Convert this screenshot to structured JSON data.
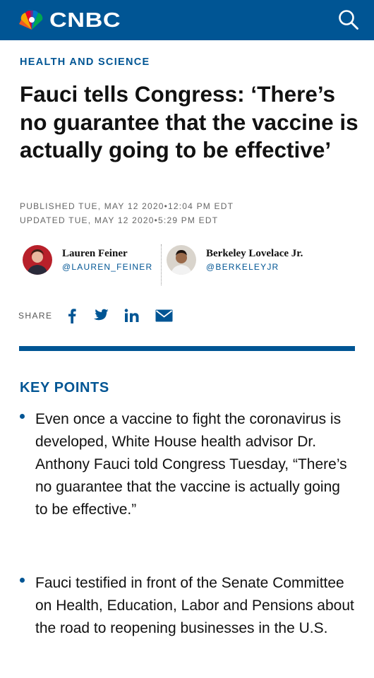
{
  "header": {
    "logo_text": "CNBC",
    "logo_icon": "peacock-icon",
    "search_icon": "search-icon"
  },
  "article": {
    "section": "HEALTH AND SCIENCE",
    "headline": "Fauci tells Congress: ‘There’s no guarantee that the vaccine is actually going to be effective’",
    "published": "PUBLISHED TUE, MAY 12 2020•12:04 PM EDT",
    "updated": "UPDATED TUE, MAY 12 2020•5:29 PM EDT",
    "authors": [
      {
        "name": "Lauren Feiner",
        "handle": "@LAUREN_FEINER"
      },
      {
        "name": "Berkeley Lovelace Jr.",
        "handle": "@BERKELEYJR"
      }
    ],
    "share_label": "SHARE",
    "share_icons": [
      "facebook-icon",
      "twitter-icon",
      "linkedin-icon",
      "email-icon"
    ]
  },
  "key_points": {
    "title": "KEY POINTS",
    "items": [
      "Even once a vaccine to fight the coronavirus is developed, White House health advisor Dr. Anthony Fauci told Congress Tuesday, “There’s no guarantee that the vaccine is actually going to be effective.”",
      "Fauci testified in front of the Senate Committee on Health, Education, Labor and Pensions about the road to reopening businesses in the U.S."
    ]
  },
  "colors": {
    "brand_blue": "#005594",
    "text": "#111111",
    "muted": "#666666"
  }
}
